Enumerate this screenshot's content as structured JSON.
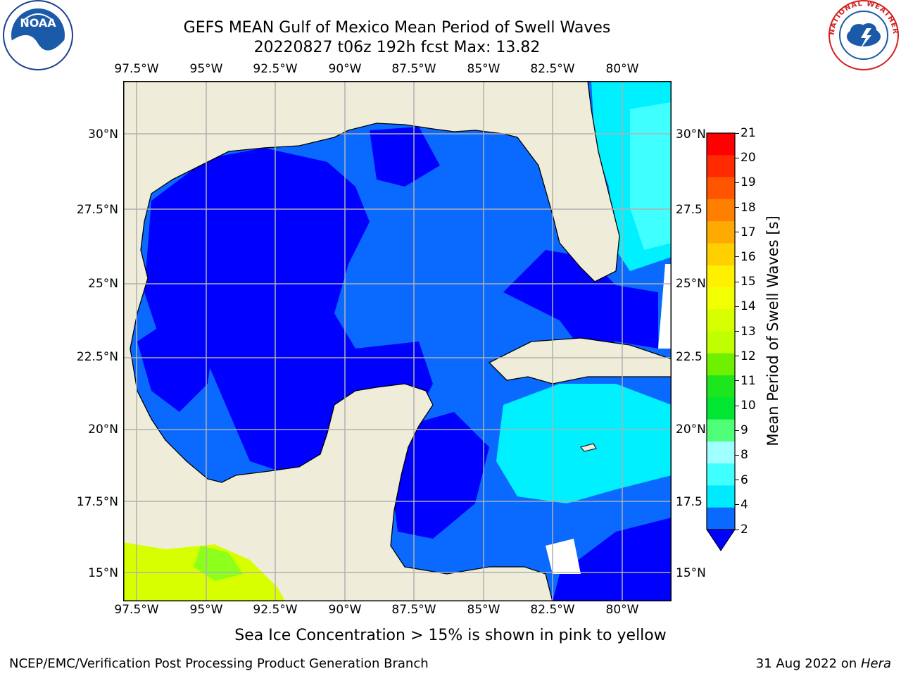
{
  "title": {
    "line1": "GEFS MEAN Gulf of Mexico Mean Period of Swell Waves",
    "line2": "20220827 t06z 192h fcst   Max: 13.82"
  },
  "map": {
    "lon_ticks": [
      "97.5°W",
      "95°W",
      "92.5°W",
      "90°W",
      "87.5°W",
      "85°W",
      "82.5°W",
      "80°W"
    ],
    "lat_ticks_left": [
      "30°N",
      "27.5°N",
      "25°N",
      "22.5°N",
      "20°N",
      "17.5°N",
      "15°N"
    ],
    "lat_ticks_right": [
      "30°N",
      "27.5",
      "25°N",
      "22.5",
      "20°N",
      "17.5",
      "15°N"
    ],
    "colors": {
      "land": "#efedd9",
      "deep_blue": "#0000ff",
      "mid_blue": "#0a6aff",
      "cyan": "#00f0ff",
      "light_cyan": "#40ffff",
      "yellow_green": "#d8ff00",
      "green": "#8cff1a"
    }
  },
  "colorbar": {
    "ticks": [
      "21",
      "20",
      "19",
      "18",
      "17",
      "16",
      "15",
      "14",
      "13",
      "12",
      "11",
      "10",
      "9",
      "8",
      "6",
      "4",
      "2"
    ],
    "label": "Mean Period of Swell Waves [s]",
    "colors": [
      "#ff0000",
      "#ff2a00",
      "#ff5500",
      "#ff7f00",
      "#ffaa00",
      "#ffcf00",
      "#fff000",
      "#f2ff00",
      "#d8ff00",
      "#bfff00",
      "#6ef000",
      "#1ee61e",
      "#00e632",
      "#50ff78",
      "#a0ffff",
      "#40ffff",
      "#00eaff",
      "#0a6aff"
    ],
    "extend_color": "#0000ff"
  },
  "note": "Sea Ice Concentration > 15% is shown in pink to yellow",
  "footer": {
    "left": "NCEP/EMC/Verification Post Processing Product Generation Branch",
    "right_date": "31 Aug 2022 on ",
    "right_machine": "Hera"
  },
  "logos": {
    "noaa_text": "NOAA",
    "nws_text": "NATIONAL WEATHER SERVICE"
  }
}
